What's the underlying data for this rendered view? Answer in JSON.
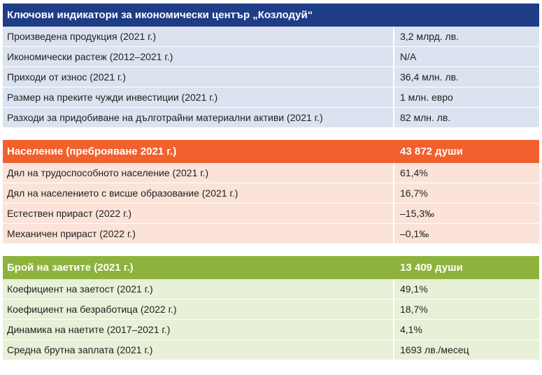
{
  "colors": {
    "economy_header": "#1f3c86",
    "economy_row": "#dbe3f0",
    "population_header": "#f2602d",
    "population_row": "#fbe3d9",
    "employment_header": "#8db33c",
    "employment_row": "#e8f0d8"
  },
  "sections": [
    {
      "id": "economy",
      "title": "Ключови индикатори за икономически център „Козлодуй“",
      "value": "",
      "rows": [
        {
          "label": "Произведена продукция (2021 г.)",
          "value": "3,2 млрд. лв."
        },
        {
          "label": "Икономически растеж (2012–2021 г.)",
          "value": "N/A"
        },
        {
          "label": "Приходи от износ (2021 г.)",
          "value": "36,4 млн. лв."
        },
        {
          "label": "Размер на преките чужди инвестиции (2021 г.)",
          "value": "1 млн. евро"
        },
        {
          "label": "Разходи за придобиване на дълготрайни материални активи (2021 г.)",
          "value": "82 млн. лв."
        }
      ]
    },
    {
      "id": "population",
      "title": "Население (преброяване 2021 г.)",
      "value": "43 872 души",
      "rows": [
        {
          "label": "Дял на трудоспособното население (2021 г.)",
          "value": "61,4%"
        },
        {
          "label": "Дял на населението с висше образование (2021 г.)",
          "value": "16,7%"
        },
        {
          "label": "Естествен прираст (2022 г.)",
          "value": "–15,3‰"
        },
        {
          "label": "Механичен прираст (2022 г.)",
          "value": "–0,1‰"
        }
      ]
    },
    {
      "id": "employment",
      "title": "Брой на заетите (2021 г.)",
      "value": "13 409 души",
      "rows": [
        {
          "label": "Коефициент на заетост (2021 г.)",
          "value": "49,1%"
        },
        {
          "label": "Коефициент на безработица (2022 г.)",
          "value": "18,7%"
        },
        {
          "label": "Динамика на наетите (2017–2021 г.)",
          "value": "4,1%"
        },
        {
          "label": "Средна брутна заплата (2021 г.)",
          "value": "1693 лв./месец"
        }
      ]
    }
  ]
}
